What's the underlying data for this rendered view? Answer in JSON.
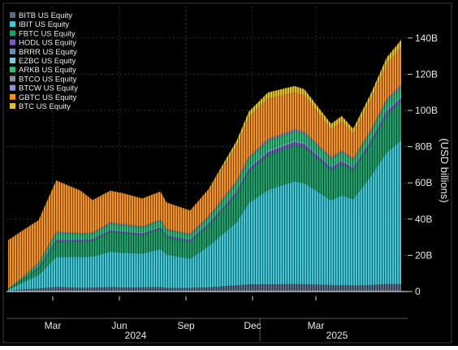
{
  "chart_data": {
    "type": "area",
    "stacked": true,
    "ylabel": "(USD billions)",
    "y_ticks": [
      "0",
      "20B",
      "40B",
      "60B",
      "80B",
      "100B",
      "120B",
      "140B"
    ],
    "ylim": [
      0,
      145
    ],
    "y_unit": "USD billions",
    "x_ticks_month": [
      "Mar",
      "Jun",
      "Sep",
      "Dec",
      "Mar"
    ],
    "x_ticks_year": [
      "2024",
      "2025"
    ],
    "x_start": "2024-01-11",
    "x_end": "2025-06-10",
    "grid": true,
    "legend_position": "top-left",
    "background": "#000000",
    "x": [
      "2024-01-11",
      "2024-02-01",
      "2024-02-20",
      "2024-03-14",
      "2024-04-15",
      "2024-05-01",
      "2024-05-24",
      "2024-06-10",
      "2024-07-05",
      "2024-07-29",
      "2024-08-06",
      "2024-09-06",
      "2024-09-30",
      "2024-11-06",
      "2024-11-22",
      "2024-12-17",
      "2025-01-21",
      "2025-02-03",
      "2025-03-10",
      "2025-03-24",
      "2025-04-08",
      "2025-05-01",
      "2025-05-22",
      "2025-06-10"
    ],
    "series": [
      {
        "name": "BITB US Equity",
        "color": "#5a6b86",
        "values": [
          0.3,
          1.2,
          1.6,
          2.5,
          2.0,
          2.1,
          2.4,
          2.2,
          2.3,
          2.4,
          2.0,
          2.0,
          2.3,
          3.4,
          3.9,
          4.0,
          4.1,
          4.0,
          3.6,
          3.6,
          3.3,
          3.6,
          4.1,
          4.1
        ]
      },
      {
        "name": "IBIT US Equity",
        "color": "#3ec8d8",
        "values": [
          0.6,
          4.0,
          7.5,
          16.6,
          17.1,
          17.2,
          19.6,
          19.2,
          18.6,
          21.1,
          18.4,
          16.1,
          22.7,
          34.8,
          45.0,
          52.1,
          56.8,
          55.8,
          46.7,
          49.5,
          47.7,
          59.9,
          72.6,
          79.4
        ]
      },
      {
        "name": "FBTC US Equity",
        "color": "#1aa068",
        "values": [
          0.3,
          2.0,
          3.8,
          8.4,
          8.6,
          8.8,
          11.0,
          10.8,
          10.4,
          11.1,
          9.7,
          9.5,
          11.4,
          15.8,
          17.6,
          19.3,
          19.8,
          19.8,
          16.9,
          17.5,
          16.0,
          18.2,
          21.1,
          21.7
        ]
      },
      {
        "name": "HODL US Equity",
        "color": "#7b5cc4",
        "values": [
          0.0,
          0.2,
          0.3,
          0.6,
          0.5,
          0.5,
          0.6,
          0.6,
          0.5,
          0.6,
          0.5,
          0.5,
          0.6,
          0.8,
          1.0,
          1.3,
          1.5,
          1.4,
          1.0,
          1.0,
          0.9,
          1.1,
          1.4,
          1.6
        ]
      },
      {
        "name": "BRRR US Equity",
        "color": "#7088b0",
        "values": [
          0.0,
          0.1,
          0.2,
          0.4,
          0.4,
          0.4,
          0.4,
          0.4,
          0.4,
          0.4,
          0.4,
          0.4,
          0.5,
          0.6,
          0.6,
          0.6,
          0.6,
          0.6,
          0.5,
          0.5,
          0.5,
          0.5,
          0.6,
          0.6
        ]
      },
      {
        "name": "EZBC US Equity",
        "color": "#6fd0e2",
        "values": [
          0.0,
          0.1,
          0.2,
          0.4,
          0.3,
          0.3,
          0.4,
          0.4,
          0.4,
          0.4,
          0.3,
          0.3,
          0.4,
          0.5,
          0.6,
          0.7,
          0.7,
          0.7,
          0.5,
          0.6,
          0.5,
          0.6,
          0.7,
          0.7
        ]
      },
      {
        "name": "ARKB US Equity",
        "color": "#2ebd7d",
        "values": [
          0.2,
          1.0,
          1.9,
          3.2,
          2.8,
          2.6,
          3.0,
          2.9,
          2.8,
          3.0,
          2.6,
          2.5,
          2.9,
          4.1,
          4.8,
          5.0,
          4.9,
          4.8,
          3.9,
          4.1,
          3.7,
          4.2,
          4.7,
          4.8
        ]
      },
      {
        "name": "BTCO US Equity",
        "color": "#8a8fa0",
        "values": [
          0.0,
          0.1,
          0.2,
          0.4,
          0.3,
          0.3,
          0.4,
          0.4,
          0.3,
          0.4,
          0.3,
          0.3,
          0.4,
          0.6,
          0.6,
          0.7,
          0.7,
          0.7,
          0.6,
          0.6,
          0.5,
          0.6,
          0.7,
          0.7
        ]
      },
      {
        "name": "BTCW US Equity",
        "color": "#8f96d8",
        "values": [
          0.0,
          0.1,
          0.2,
          0.4,
          0.3,
          0.3,
          0.4,
          0.4,
          0.3,
          0.4,
          0.3,
          0.3,
          0.4,
          0.5,
          0.5,
          0.6,
          0.6,
          0.6,
          0.5,
          0.5,
          0.4,
          0.5,
          0.6,
          0.6
        ]
      },
      {
        "name": "GBTC US Equity",
        "color": "#f59120",
        "values": [
          27.0,
          25.5,
          23.5,
          28.5,
          23.5,
          18.0,
          17.5,
          17.0,
          15.4,
          15.5,
          14.7,
          12.9,
          14.9,
          19.2,
          21.6,
          22.2,
          20.3,
          19.8,
          15.4,
          16.0,
          13.6,
          16.8,
          19.1,
          20.8
        ]
      },
      {
        "name": "BTC US Equity",
        "color": "#e8c21e",
        "values": [
          0.0,
          0.0,
          0.0,
          0.0,
          0.0,
          0.0,
          0.0,
          0.0,
          0.0,
          0.0,
          0.0,
          0.0,
          0.0,
          3.0,
          3.2,
          3.4,
          3.5,
          3.5,
          3.0,
          3.1,
          2.8,
          3.2,
          3.7,
          4.0
        ]
      }
    ]
  }
}
